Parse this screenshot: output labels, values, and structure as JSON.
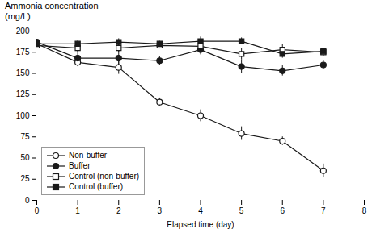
{
  "chart_data": {
    "type": "line",
    "xlabel": "Elapsed time (day)",
    "ylabel": "Ammonia concentration\n(mg/L)",
    "x": [
      0,
      1,
      2,
      3,
      4,
      5,
      6,
      7
    ],
    "series": [
      {
        "name": "Non-buffer",
        "color": "#1a1a1a",
        "marker": "circle-open",
        "values": [
          185,
          163,
          157,
          116,
          100,
          79,
          70,
          35
        ],
        "errors": [
          3,
          5,
          8,
          5,
          7,
          8,
          5,
          8
        ]
      },
      {
        "name": "Buffer",
        "color": "#1a1a1a",
        "marker": "circle",
        "values": [
          187,
          168,
          168,
          165,
          178,
          158,
          153,
          160
        ],
        "errors": [
          3,
          8,
          10,
          5,
          6,
          8,
          6,
          5
        ]
      },
      {
        "name": "Control (non-buffer)",
        "color": "#1a1a1a",
        "marker": "square-open",
        "values": [
          183,
          180,
          180,
          183,
          182,
          173,
          178,
          175
        ],
        "errors": [
          3,
          5,
          5,
          4,
          7,
          7,
          6,
          5
        ]
      },
      {
        "name": "Control (buffer)",
        "color": "#1a1a1a",
        "marker": "square",
        "values": [
          185,
          185,
          187,
          185,
          188,
          188,
          173,
          176
        ],
        "errors": [
          3,
          4,
          4,
          3,
          5,
          4,
          5,
          4
        ]
      }
    ],
    "xlim": [
      0,
      8
    ],
    "ylim": [
      0,
      200
    ],
    "xticks": [
      0,
      1,
      2,
      3,
      4,
      5,
      6,
      7,
      8
    ],
    "yticks": [
      0,
      25,
      50,
      75,
      100,
      125,
      150,
      175,
      200
    ],
    "legend": "lower left"
  }
}
